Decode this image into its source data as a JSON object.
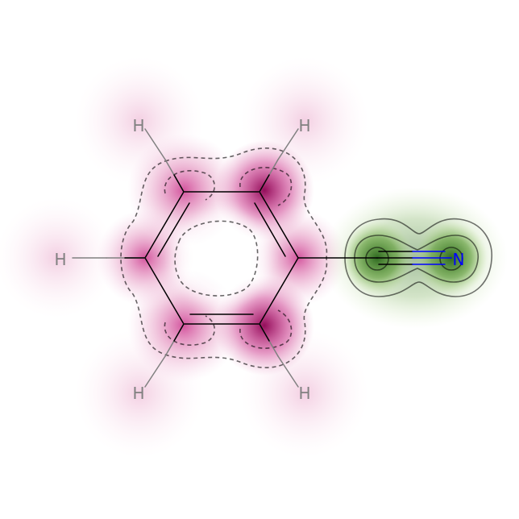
{
  "molecule": {
    "colors": {
      "negative": "#8e0152",
      "positive": "#276419",
      "bond": "#000000",
      "hydrogen_bond": "#808080",
      "hydrogen_label": "#808080",
      "nitrogen": "#0000ff",
      "contour_line": "#000000"
    },
    "atoms": [
      {
        "id": "H1",
        "label": "H",
        "element": "H"
      },
      {
        "id": "H2",
        "label": "H",
        "element": "H"
      },
      {
        "id": "H3",
        "label": "H",
        "element": "H"
      },
      {
        "id": "H4",
        "label": "H",
        "element": "H"
      },
      {
        "id": "H5",
        "label": "H",
        "element": "H"
      },
      {
        "id": "N1",
        "label": "N",
        "element": "N"
      }
    ]
  }
}
